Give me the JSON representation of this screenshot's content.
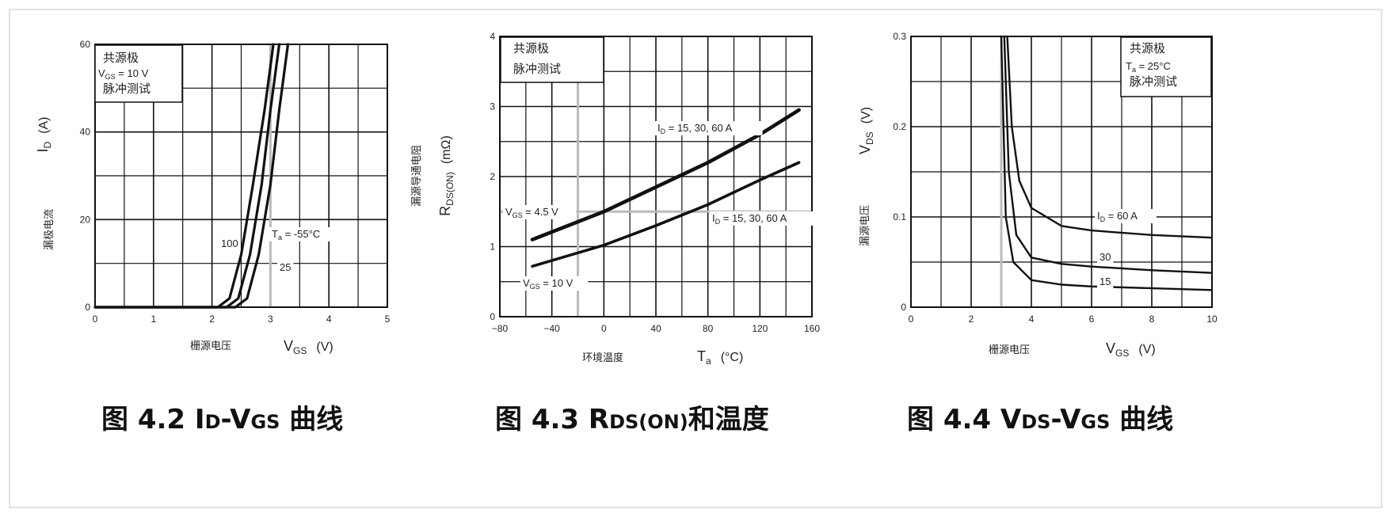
{
  "chart_data": [
    {
      "id": "id-vgs",
      "type": "line",
      "title": "",
      "caption": {
        "prefix": "图 4.2 ",
        "parts": [
          {
            "t": "I",
            "s": 1
          },
          {
            "t": "D",
            "s": 0
          },
          {
            "t": "-V",
            "s": 1
          },
          {
            "t": "GS",
            "s": 0
          },
          {
            "t": " 曲线",
            "s": 1
          }
        ]
      },
      "xlabel_cn": "栅源电压",
      "xlabel": {
        "main": "V",
        "sub": "GS",
        "unit": "(V)"
      },
      "ylabel_cn": "漏极电流",
      "ylabel": {
        "main": "I",
        "sub": "D",
        "unit": "(A)"
      },
      "xlim": [
        0,
        5
      ],
      "ylim": [
        0,
        60
      ],
      "x_ticks": [
        "0",
        "1",
        "2",
        "3",
        "4",
        "5"
      ],
      "y_ticks": [
        "0",
        "20",
        "40",
        "60"
      ],
      "grid": true,
      "legend_box": [
        "共源极",
        "V_GS = 10 V",
        "脉冲测试"
      ],
      "annotations": [
        "100",
        "T_a = -55°C",
        "25"
      ],
      "series": [
        {
          "label": "100",
          "x": [
            0,
            2.1,
            2.3,
            2.5,
            2.7,
            2.9,
            3.05
          ],
          "y": [
            0,
            0,
            2,
            12,
            28,
            45,
            60
          ]
        },
        {
          "label": "25",
          "x": [
            0,
            2.25,
            2.45,
            2.65,
            2.85,
            3.0,
            3.15
          ],
          "y": [
            0,
            0,
            2,
            12,
            28,
            45,
            60
          ]
        },
        {
          "label": "-55°C",
          "x": [
            0,
            2.4,
            2.6,
            2.8,
            3.0,
            3.15,
            3.3
          ],
          "y": [
            0,
            0,
            2,
            12,
            28,
            45,
            60
          ]
        }
      ]
    },
    {
      "id": "rdson-temp",
      "type": "line",
      "title": "",
      "caption": {
        "prefix": "图 4.3 ",
        "parts": [
          {
            "t": "R",
            "s": 1
          },
          {
            "t": "DS(ON)",
            "s": 0
          },
          {
            "t": "和温度",
            "s": 1
          }
        ]
      },
      "xlabel_cn": "环境温度",
      "xlabel": {
        "main": "T",
        "sub": "a",
        "unit": "(°C)"
      },
      "ylabel_cn": "漏源导通电阻",
      "ylabel": {
        "main": "R",
        "sub": "DS(ON)",
        "unit": "(mΩ)"
      },
      "xlim": [
        -80,
        160
      ],
      "ylim": [
        0,
        4
      ],
      "x_ticks": [
        "−80",
        "−40",
        "0",
        "40",
        "80",
        "120",
        "160"
      ],
      "y_ticks": [
        "0",
        "1",
        "2",
        "3",
        "4"
      ],
      "grid": true,
      "legend_box": [
        "共源极",
        "脉冲测试"
      ],
      "annotations": [
        "I_D = 15, 30, 60 A",
        "V_GS = 4.5 V",
        "I_D = 15, 30, 60 A",
        "V_GS = 10 V"
      ],
      "series": [
        {
          "label": "V_GS = 4.5 V",
          "x": [
            -55,
            0,
            40,
            80,
            120,
            150
          ],
          "y": [
            1.1,
            1.5,
            1.85,
            2.2,
            2.6,
            2.95
          ]
        },
        {
          "label": "V_GS = 10 V",
          "x": [
            -55,
            0,
            40,
            80,
            120,
            150
          ],
          "y": [
            0.72,
            1.02,
            1.3,
            1.6,
            1.95,
            2.2
          ]
        }
      ]
    },
    {
      "id": "vds-vgs",
      "type": "line",
      "title": "",
      "caption": {
        "prefix": "图 4.4 ",
        "parts": [
          {
            "t": "V",
            "s": 1
          },
          {
            "t": "DS",
            "s": 0
          },
          {
            "t": "-V",
            "s": 1
          },
          {
            "t": "GS",
            "s": 0
          },
          {
            "t": " 曲线",
            "s": 1
          }
        ]
      },
      "xlabel_cn": "栅源电压",
      "xlabel": {
        "main": "V",
        "sub": "GS",
        "unit": "(V)"
      },
      "ylabel_cn": "漏源电压",
      "ylabel": {
        "main": "V",
        "sub": "DS",
        "unit": "(V)"
      },
      "xlim": [
        0,
        10
      ],
      "ylim": [
        0,
        0.3
      ],
      "x_ticks": [
        "0",
        "2",
        "4",
        "6",
        "8",
        "10"
      ],
      "y_ticks": [
        "0",
        "0.1",
        "0.2",
        "0.3"
      ],
      "grid": true,
      "legend_box": [
        "共源极",
        "T_a = 25°C",
        "脉冲测试"
      ],
      "annotations": [
        "I_D = 60 A",
        "30",
        "15"
      ],
      "series": [
        {
          "label": "I_D = 60 A",
          "x": [
            3.2,
            3.35,
            3.6,
            4.0,
            5.0,
            6.0,
            8.0,
            10.0
          ],
          "y": [
            0.3,
            0.2,
            0.14,
            0.11,
            0.09,
            0.085,
            0.08,
            0.077
          ]
        },
        {
          "label": "30",
          "x": [
            3.1,
            3.25,
            3.5,
            4.0,
            5.0,
            6.0,
            8.0,
            10.0
          ],
          "y": [
            0.3,
            0.15,
            0.08,
            0.055,
            0.048,
            0.045,
            0.041,
            0.038
          ]
        },
        {
          "label": "15",
          "x": [
            3.0,
            3.15,
            3.4,
            4.0,
            5.0,
            6.0,
            8.0,
            10.0
          ],
          "y": [
            0.3,
            0.1,
            0.05,
            0.03,
            0.025,
            0.023,
            0.021,
            0.019
          ]
        }
      ]
    }
  ]
}
